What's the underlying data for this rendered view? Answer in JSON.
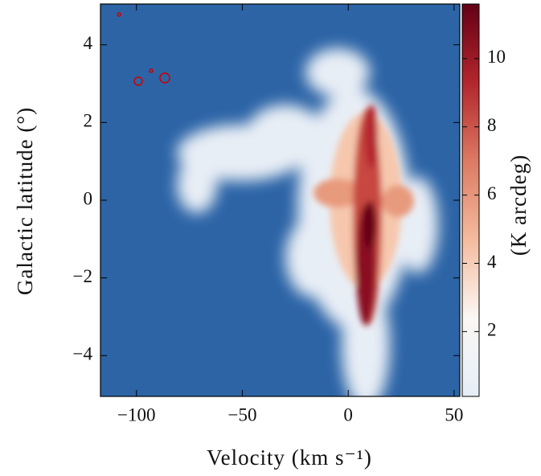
{
  "chart_data": {
    "type": "heatmap",
    "xlabel": "Velocity (km s⁻¹)",
    "ylabel": "Galactic latitude (°)",
    "colorbar_label": "(K arcdeg)",
    "xlim": [
      -117,
      52.7
    ],
    "xticks": [
      {
        "value": -100,
        "label": "−100"
      },
      {
        "value": -50,
        "label": "−50"
      },
      0,
      50
    ],
    "ylim": [
      -5.05,
      5.05
    ],
    "yticks": [
      {
        "value": -4,
        "label": "−4"
      },
      {
        "value": -2,
        "label": "−2"
      },
      0,
      2,
      4
    ],
    "clim": [
      0.1,
      11.6
    ],
    "cticks": [
      2,
      4,
      6,
      8,
      10
    ],
    "background_color": "#2c64a6",
    "colormap": [
      "#e4eef7",
      "#fbf7f4",
      "#f4bb9e",
      "#dc7a62",
      "#b3262d",
      "#640016"
    ]
  }
}
